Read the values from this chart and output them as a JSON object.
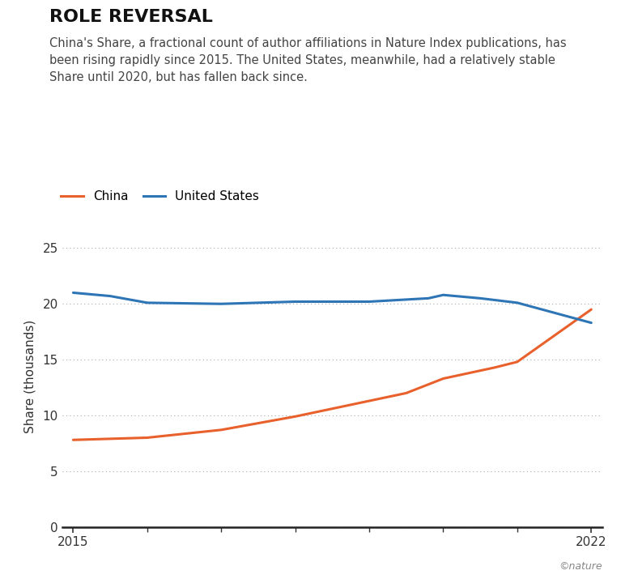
{
  "title": "ROLE REVERSAL",
  "subtitle": "China's Share, a fractional count of author affiliations in Nature Index publications, has\nbeen rising rapidly since 2015. The United States, meanwhile, had a relatively stable\nShare until 2020, but has fallen back since.",
  "ylabel": "Share (thousands)",
  "china_x": [
    2015,
    2016,
    2017,
    2018,
    2019,
    2019.5,
    2020,
    2020.7,
    2021,
    2022
  ],
  "china_y": [
    7.8,
    8.0,
    8.7,
    9.9,
    11.3,
    12.0,
    13.3,
    14.3,
    14.8,
    19.5
  ],
  "us_x": [
    2015,
    2015.5,
    2016,
    2017,
    2017.5,
    2018,
    2019,
    2019.8,
    2020,
    2020.5,
    2021,
    2022
  ],
  "us_y": [
    21.0,
    20.7,
    20.1,
    20.0,
    20.1,
    20.2,
    20.2,
    20.5,
    20.8,
    20.5,
    20.1,
    18.3
  ],
  "china_color": "#E8612C",
  "us_color": "#2E75B6",
  "ylim": [
    0,
    27
  ],
  "yticks": [
    0,
    5,
    10,
    15,
    20,
    25
  ],
  "xlim": [
    2014.85,
    2022.15
  ],
  "xticks": [
    2015,
    2022
  ],
  "minor_xticks": [
    2016,
    2017,
    2018,
    2019,
    2020,
    2021
  ],
  "grid_color": "#aaaaaa",
  "background_color": "#ffffff",
  "title_fontsize": 16,
  "subtitle_fontsize": 10.5,
  "axis_fontsize": 11,
  "legend_fontsize": 11,
  "line_width": 2.2,
  "copyright": "©nature"
}
